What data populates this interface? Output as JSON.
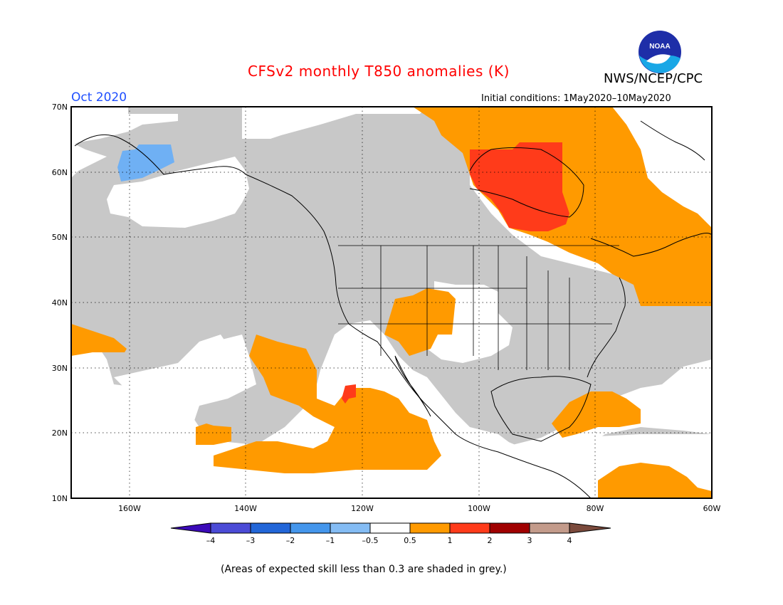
{
  "header": {
    "title": "CFSv2 monthly T850 anomalies (K)",
    "agency": "NWS/NCEP/CPC",
    "month": "Oct 2020",
    "initial_conditions": "Initial conditions: 1May2020–10May2020"
  },
  "logo": {
    "icon": "noaa-logo",
    "text": "NOAA"
  },
  "map": {
    "lat_labels": [
      "70N",
      "60N",
      "50N",
      "40N",
      "30N",
      "20N",
      "10N"
    ],
    "lon_labels": [
      "160W",
      "140W",
      "120W",
      "100W",
      "80W",
      "60W"
    ],
    "lat_range": [
      10,
      70
    ],
    "lon_range": [
      -170,
      -60
    ],
    "grid": true
  },
  "legend": {
    "labels": [
      "–4",
      "–3",
      "–2",
      "–1",
      "–0.5",
      "0.5",
      "1",
      "2",
      "3",
      "4"
    ],
    "colors": [
      "#3b0ab8",
      "#4b4bd6",
      "#2266d8",
      "#4496ec",
      "#84bcf4",
      "#ffffff",
      "#ff9a00",
      "#ff3b1a",
      "#a00000",
      "#c39b8b",
      "#7b4a3c"
    ],
    "skill_mask_color": "#c8c8c8"
  },
  "colors": {
    "title": "#ff0000",
    "month": "#1f4fff",
    "grey": "#c8c8c8",
    "orange": "#ff9a00",
    "red": "#ff3b1a",
    "lightblue": "#6fb0f4"
  },
  "footnote": "(Areas of expected skill less than 0.3 are shaded in grey.)"
}
